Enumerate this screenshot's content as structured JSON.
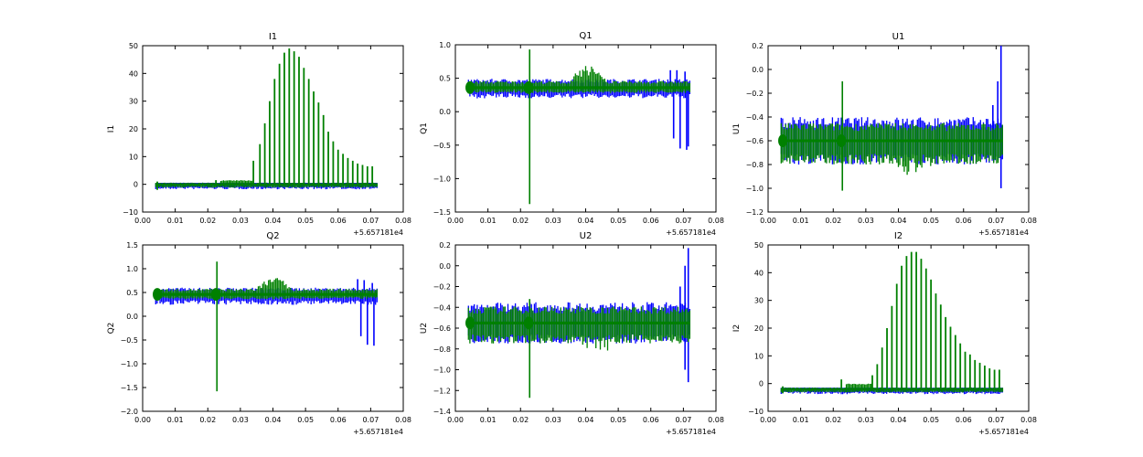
{
  "colors": {
    "blue": "#0000ff",
    "green": "#008000",
    "axes": "#000000",
    "background": "#ffffff"
  },
  "chart_data": [
    {
      "type": "line",
      "title": "I1",
      "ylabel": "I1",
      "xlabel": "",
      "x_offset_label": "+5.657181e4",
      "xlim": [
        0.0,
        0.08
      ],
      "ylim": [
        -10,
        50
      ],
      "xticks": [
        "0.00",
        "0.01",
        "0.02",
        "0.03",
        "0.04",
        "0.05",
        "0.06",
        "0.07",
        "0.08"
      ],
      "yticks": [
        "−10",
        "0",
        "10",
        "20",
        "30",
        "40",
        "50"
      ],
      "x_range": [
        0.004,
        0.072
      ],
      "series": [
        {
          "color": "blue",
          "baseline": 0,
          "min": -2,
          "max": 0.8,
          "spread_up": 0.6,
          "spread_down": 1.8
        },
        {
          "color": "green",
          "baseline": 0,
          "bursts": [
            [
              0.0045,
              -2,
              1
            ],
            [
              0.0225,
              -1,
              1.5
            ],
            [
              0.034,
              0,
              8.5
            ],
            [
              0.036,
              0,
              14.5
            ],
            [
              0.0375,
              0,
              22
            ],
            [
              0.039,
              0,
              30
            ],
            [
              0.0405,
              0,
              38
            ],
            [
              0.042,
              0,
              43.5
            ],
            [
              0.0435,
              0,
              47.5
            ],
            [
              0.045,
              0,
              49
            ],
            [
              0.0465,
              0,
              48
            ],
            [
              0.048,
              0,
              46
            ],
            [
              0.0495,
              0,
              42
            ],
            [
              0.051,
              0,
              38
            ],
            [
              0.0525,
              0,
              33.5
            ],
            [
              0.054,
              0,
              29.5
            ],
            [
              0.0555,
              0,
              25
            ],
            [
              0.057,
              0,
              19
            ],
            [
              0.0585,
              0,
              15.5
            ],
            [
              0.06,
              0,
              12.5
            ],
            [
              0.0615,
              0,
              11
            ],
            [
              0.063,
              0,
              9.5
            ],
            [
              0.0645,
              0,
              8.5
            ],
            [
              0.066,
              0,
              7.5
            ],
            [
              0.0675,
              0,
              7
            ],
            [
              0.069,
              0,
              6.5
            ],
            [
              0.0705,
              0,
              6.5
            ]
          ],
          "low_start": 0.024,
          "low_end": 0.034,
          "low_max": 1.5
        }
      ]
    },
    {
      "type": "line",
      "title": "Q1",
      "ylabel": "Q1",
      "xlabel": "",
      "x_offset_label": "+5.657181e4",
      "xlim": [
        0.0,
        0.08
      ],
      "ylim": [
        -1.5,
        1.0
      ],
      "xticks": [
        "0.00",
        "0.01",
        "0.02",
        "0.03",
        "0.04",
        "0.05",
        "0.06",
        "0.07",
        "0.08"
      ],
      "yticks": [
        "−1.5",
        "−1.0",
        "−0.5",
        "0.0",
        "0.5",
        "1.0"
      ],
      "x_range": [
        0.004,
        0.072
      ],
      "series": [
        {
          "color": "blue",
          "baseline": 0.36,
          "spread_up": 0.13,
          "spread_down": 0.16,
          "spikes": [
            [
              0.067,
              -0.4
            ],
            [
              0.069,
              -0.55
            ],
            [
              0.071,
              -0.57
            ],
            [
              0.0715,
              -0.52
            ]
          ],
          "tips": [
            [
              0.066,
              0.62
            ],
            [
              0.068,
              0.62
            ],
            [
              0.0705,
              0.6
            ]
          ]
        },
        {
          "color": "green",
          "baseline": 0.36,
          "spread_up": 0.1,
          "spread_down": 0.08,
          "hump": [
            0.034,
            0.048,
            0.72
          ],
          "spikes": [
            [
              0.0228,
              -1.38
            ]
          ],
          "tips": [
            [
              0.0228,
              0.93
            ]
          ]
        }
      ]
    },
    {
      "type": "line",
      "title": "U1",
      "ylabel": "U1",
      "xlabel": "",
      "x_offset_label": "+5.657181e4",
      "xlim": [
        0.0,
        0.08
      ],
      "ylim": [
        -1.2,
        0.2
      ],
      "xticks": [
        "0.00",
        "0.01",
        "0.02",
        "0.03",
        "0.04",
        "0.05",
        "0.06",
        "0.07",
        "0.08"
      ],
      "yticks": [
        "−1.2",
        "−1.0",
        "−0.8",
        "−0.6",
        "−0.4",
        "−0.2",
        "0.0",
        "0.2"
      ],
      "x_range": [
        0.004,
        0.072
      ],
      "series": [
        {
          "color": "blue",
          "baseline": -0.6,
          "spread_up": 0.2,
          "spread_down": 0.2,
          "spikes": [
            [
              0.0715,
              -1.0
            ]
          ],
          "tips": [
            [
              0.069,
              -0.3
            ],
            [
              0.0705,
              -0.1
            ],
            [
              0.0715,
              0.2
            ]
          ]
        },
        {
          "color": "green",
          "baseline": -0.6,
          "spread_up": 0.15,
          "spread_down": 0.2,
          "dip": [
            0.036,
            0.052,
            -0.92
          ],
          "spikes": [
            [
              0.0228,
              -1.02
            ]
          ],
          "tips": [
            [
              0.0228,
              -0.1
            ]
          ]
        }
      ]
    },
    {
      "type": "line",
      "title": "Q2",
      "ylabel": "Q2",
      "xlabel": "",
      "x_offset_label": "+5.657181e4",
      "xlim": [
        0.0,
        0.08
      ],
      "ylim": [
        -2.0,
        1.5
      ],
      "xticks": [
        "0.00",
        "0.01",
        "0.02",
        "0.03",
        "0.04",
        "0.05",
        "0.06",
        "0.07",
        "0.08"
      ],
      "yticks": [
        "−2.0",
        "−1.5",
        "−1.0",
        "−0.5",
        "0.0",
        "0.5",
        "1.0",
        "1.5"
      ],
      "x_range": [
        0.004,
        0.072
      ],
      "series": [
        {
          "color": "blue",
          "baseline": 0.46,
          "spread_up": 0.14,
          "spread_down": 0.22,
          "spikes": [
            [
              0.067,
              -0.42
            ],
            [
              0.069,
              -0.6
            ],
            [
              0.071,
              -0.62
            ]
          ],
          "tips": [
            [
              0.066,
              0.78
            ],
            [
              0.068,
              0.76
            ],
            [
              0.0705,
              0.7
            ]
          ]
        },
        {
          "color": "green",
          "baseline": 0.46,
          "spread_up": 0.12,
          "spread_down": 0.1,
          "hump": [
            0.033,
            0.048,
            0.85
          ],
          "spikes": [
            [
              0.0228,
              -1.58
            ]
          ],
          "tips": [
            [
              0.0228,
              1.15
            ]
          ]
        }
      ]
    },
    {
      "type": "line",
      "title": "U2",
      "ylabel": "U2",
      "xlabel": "",
      "x_offset_label": "+5.657181e4",
      "xlim": [
        0.0,
        0.08
      ],
      "ylim": [
        -1.4,
        0.2
      ],
      "xticks": [
        "0.00",
        "0.01",
        "0.02",
        "0.03",
        "0.04",
        "0.05",
        "0.06",
        "0.07",
        "0.08"
      ],
      "yticks": [
        "−1.4",
        "−1.2",
        "−1.0",
        "−0.8",
        "−0.6",
        "−0.4",
        "−0.2",
        "0.0",
        "0.2"
      ],
      "x_range": [
        0.004,
        0.072
      ],
      "series": [
        {
          "color": "blue",
          "baseline": -0.55,
          "spread_up": 0.2,
          "spread_down": 0.2,
          "spikes": [
            [
              0.0705,
              -1.0
            ],
            [
              0.0715,
              -1.12
            ]
          ],
          "tips": [
            [
              0.069,
              -0.2
            ],
            [
              0.0705,
              0.0
            ],
            [
              0.0715,
              0.17
            ]
          ]
        },
        {
          "color": "green",
          "baseline": -0.55,
          "spread_up": 0.16,
          "spread_down": 0.2,
          "dip": [
            0.036,
            0.052,
            -0.85
          ],
          "spikes": [
            [
              0.0228,
              -1.27
            ]
          ],
          "tips": [
            [
              0.0228,
              -0.32
            ]
          ]
        }
      ]
    },
    {
      "type": "line",
      "title": "I2",
      "ylabel": "I2",
      "xlabel": "",
      "x_offset_label": "+5.657181e4",
      "xlim": [
        0.0,
        0.08
      ],
      "ylim": [
        -10,
        50
      ],
      "xticks": [
        "0.00",
        "0.01",
        "0.02",
        "0.03",
        "0.04",
        "0.05",
        "0.06",
        "0.07",
        "0.08"
      ],
      "yticks": [
        "−10",
        "0",
        "10",
        "20",
        "30",
        "40",
        "50"
      ],
      "x_range": [
        0.004,
        0.072
      ],
      "series": [
        {
          "color": "blue",
          "baseline": -2,
          "spread_up": 0.5,
          "spread_down": 1.8
        },
        {
          "color": "green",
          "baseline": -2,
          "bursts": [
            [
              0.0045,
              -3.5,
              -1
            ],
            [
              0.0225,
              -2,
              1.5
            ],
            [
              0.032,
              -2,
              3
            ],
            [
              0.0335,
              -2,
              7
            ],
            [
              0.035,
              -2,
              13
            ],
            [
              0.0365,
              -2,
              20
            ],
            [
              0.038,
              -2,
              28
            ],
            [
              0.0395,
              -2,
              36
            ],
            [
              0.041,
              -2,
              42.5
            ],
            [
              0.0425,
              -2,
              46
            ],
            [
              0.044,
              -2,
              47.5
            ],
            [
              0.0455,
              -2,
              47.5
            ],
            [
              0.047,
              -2,
              45
            ],
            [
              0.0485,
              -2,
              41.5
            ],
            [
              0.05,
              -2,
              37.5
            ],
            [
              0.0515,
              -2,
              32.5
            ],
            [
              0.053,
              -2,
              28.5
            ],
            [
              0.0545,
              -2,
              24
            ],
            [
              0.056,
              -2,
              20.5
            ],
            [
              0.0575,
              -2,
              17.5
            ],
            [
              0.059,
              -2,
              14.5
            ],
            [
              0.0605,
              -2,
              11.5
            ],
            [
              0.062,
              -2,
              10.5
            ],
            [
              0.0635,
              -2,
              8.5
            ],
            [
              0.065,
              -2,
              7.5
            ],
            [
              0.0665,
              -2,
              6.5
            ],
            [
              0.068,
              -2,
              5.5
            ],
            [
              0.0695,
              -2,
              5
            ],
            [
              0.071,
              -2,
              5
            ]
          ],
          "low_start": 0.024,
          "low_end": 0.032,
          "low_max": 0
        }
      ]
    }
  ]
}
